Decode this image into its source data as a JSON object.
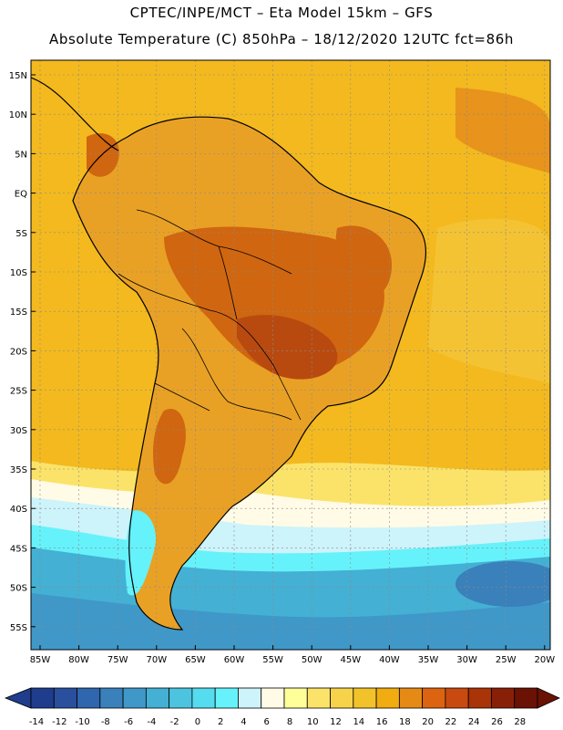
{
  "title_line1": "CPTEC/INPE/MCT –  Eta Model 15km – GFS",
  "title_line2": "Absolute Temperature (C) 850hPa – 18/12/2020 12UTC fct=86h",
  "lat_labels": [
    "15N",
    "10N",
    "5N",
    "EQ",
    "5S",
    "10S",
    "15S",
    "20S",
    "25S",
    "30S",
    "35S",
    "40S",
    "45S",
    "50S",
    "55S"
  ],
  "lon_labels": [
    "85W",
    "80W",
    "75W",
    "70W",
    "65W",
    "60W",
    "55W",
    "50W",
    "45W",
    "40W",
    "35W",
    "30W",
    "25W",
    "20W"
  ],
  "colorbar": {
    "ticks": [
      "-14",
      "-12",
      "-10",
      "-8",
      "-6",
      "-4",
      "-2",
      "0",
      "2",
      "4",
      "6",
      "8",
      "10",
      "12",
      "14",
      "16",
      "18",
      "20",
      "22",
      "24",
      "26",
      "28"
    ],
    "colors": [
      "#1f3d8c",
      "#2a4f9c",
      "#2f66ad",
      "#3a80ba",
      "#3f98c8",
      "#44b0d4",
      "#4cc4e0",
      "#55dcee",
      "#66f2fa",
      "#cdf3fb",
      "#fffbe6",
      "#ffff99",
      "#fbe36a",
      "#f6d34a",
      "#f2c22a",
      "#f0ac10",
      "#e68a16",
      "#dc6410",
      "#c84a10",
      "#a83408",
      "#882008",
      "#6a1204"
    ]
  },
  "colors": {
    "ocean_base": "#f3b91e",
    "land_base": "#e9a125",
    "hot": "#d0660f",
    "hottest": "#b84a10",
    "cold_south": "#4aa6d0",
    "cyan": "#5ce4f4",
    "frame": "#000000"
  }
}
